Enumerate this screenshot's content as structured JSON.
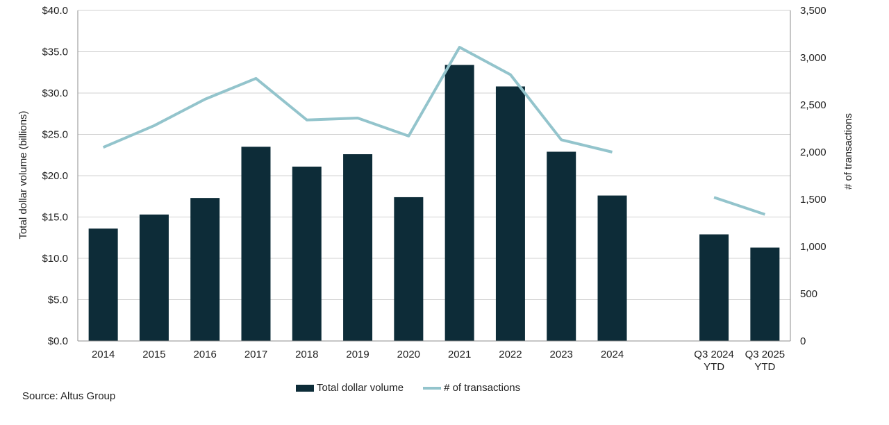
{
  "chart_data": {
    "type": "bar+line",
    "categories": [
      "2014",
      "2015",
      "2016",
      "2017",
      "2018",
      "2019",
      "2020",
      "2021",
      "2022",
      "2023",
      "2024",
      "",
      "Q3 2024\nYTD",
      "Q3 2025\nYTD"
    ],
    "series": [
      {
        "name": "Total dollar volume",
        "type": "bar",
        "axis": "left",
        "values": [
          13.6,
          15.3,
          17.3,
          23.5,
          21.1,
          22.6,
          17.4,
          33.4,
          30.8,
          22.9,
          17.6,
          null,
          12.9,
          11.3
        ]
      },
      {
        "name": "# of transactions",
        "type": "line",
        "axis": "right",
        "values": [
          2050,
          2280,
          2560,
          2780,
          2340,
          2360,
          2170,
          3110,
          2820,
          2130,
          2000,
          null,
          1520,
          1340
        ]
      }
    ],
    "ylabel_left": "Total dollar volume (billions)",
    "ylabel_right": "# of transactions",
    "ylim_left": [
      0,
      40
    ],
    "ylim_right": [
      0,
      3500
    ],
    "yticks_left": [
      "$0.0",
      "$5.0",
      "$10.0",
      "$15.0",
      "$20.0",
      "$25.0",
      "$30.0",
      "$35.0",
      "$40.0"
    ],
    "yticks_right": [
      "0",
      "500",
      "1,000",
      "1,500",
      "2,000",
      "2,500",
      "3,000",
      "3,500"
    ],
    "grid": true,
    "legend_position": "bottom-center",
    "colors": {
      "bar": "#0d2c38",
      "line": "#93c4cc",
      "grid": "#d0d0d0",
      "axis": "#8c8c8c"
    }
  },
  "legend": {
    "bar_label": "Total dollar volume",
    "line_label": "# of transactions"
  },
  "source": "Source:  Altus Group"
}
